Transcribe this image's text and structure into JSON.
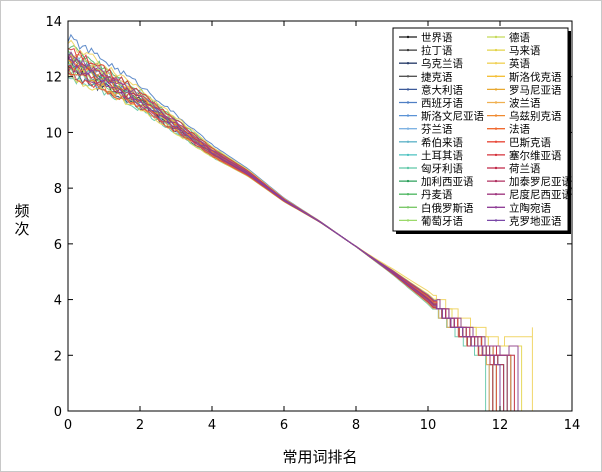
{
  "chart_data": {
    "type": "line",
    "title": "",
    "xlabel": "常用词排名",
    "ylabel": "频次",
    "xlim": [
      0,
      14
    ],
    "ylim": [
      0,
      14
    ],
    "xticks": [
      "0",
      "2",
      "4",
      "6",
      "8",
      "10",
      "12",
      "14"
    ],
    "yticks": [
      "0",
      "2",
      "4",
      "6",
      "8",
      "10",
      "12",
      "14"
    ],
    "grid": false,
    "legend_position": "top-right",
    "shared_curve_x": [
      0.0,
      1.0,
      2.0,
      3.0,
      4.0,
      5.0,
      6.0,
      7.0,
      8.0,
      9.0,
      10.0,
      11.0,
      12.0
    ],
    "shared_curve_y": [
      12.9,
      12.2,
      11.4,
      10.4,
      9.4,
      8.6,
      7.6,
      6.8,
      5.9,
      4.9,
      3.8,
      2.4,
      1.2
    ],
    "series": [
      {
        "name": "世界语",
        "color": "#1a1a1a",
        "y0": 12.3,
        "x_end": 12.1
      },
      {
        "name": "拉丁语",
        "color": "#3a3a3a",
        "y0": 12.6,
        "x_end": 11.8
      },
      {
        "name": "乌克兰语",
        "color": "#2b3f6b",
        "y0": 12.1,
        "x_end": 12.3
      },
      {
        "name": "捷克语",
        "color": "#555555",
        "y0": 12.8,
        "x_end": 11.9
      },
      {
        "name": "意大利语",
        "color": "#3d5a99",
        "y0": 12.4,
        "x_end": 12.0
      },
      {
        "name": "西班牙语",
        "color": "#4f7fc4",
        "y0": 13.4,
        "x_end": 12.2
      },
      {
        "name": "斯洛文尼亚语",
        "color": "#5b93d6",
        "y0": 12.7,
        "x_end": 11.7
      },
      {
        "name": "芬兰语",
        "color": "#7fb3e3",
        "y0": 12.2,
        "x_end": 12.4
      },
      {
        "name": "希伯来语",
        "color": "#63b5c9",
        "y0": 12.9,
        "x_end": 11.9
      },
      {
        "name": "土耳其语",
        "color": "#4dc2c0",
        "y0": 12.5,
        "x_end": 12.1
      },
      {
        "name": "匈牙利语",
        "color": "#5fc8a8",
        "y0": 12.0,
        "x_end": 11.6
      },
      {
        "name": "加利西亚语",
        "color": "#2da05c",
        "y0": 12.6,
        "x_end": 12.2
      },
      {
        "name": "丹麦语",
        "color": "#52b865",
        "y0": 13.1,
        "x_end": 11.8
      },
      {
        "name": "白俄罗斯语",
        "color": "#7cc96a",
        "y0": 12.3,
        "x_end": 12.5
      },
      {
        "name": "葡萄牙语",
        "color": "#9bd96a",
        "y0": 12.8,
        "x_end": 11.9
      },
      {
        "name": "德语",
        "color": "#c5d95a",
        "y0": 12.4,
        "x_end": 12.0
      },
      {
        "name": "马来语",
        "color": "#e3d44a",
        "y0": 12.0,
        "x_end": 12.6
      },
      {
        "name": "英语",
        "color": "#f0d25a",
        "y0": 13.2,
        "x_end": 12.9
      },
      {
        "name": "斯洛伐克语",
        "color": "#f4c03a",
        "y0": 12.7,
        "x_end": 11.8
      },
      {
        "name": "罗马尼亚语",
        "color": "#e8a830",
        "y0": 12.5,
        "x_end": 12.2
      },
      {
        "name": "波兰语",
        "color": "#f0b050",
        "y0": 12.9,
        "x_end": 11.7
      },
      {
        "name": "乌兹别克语",
        "color": "#f08a30",
        "y0": 12.2,
        "x_end": 12.3
      },
      {
        "name": "法语",
        "color": "#f06a30",
        "y0": 12.6,
        "x_end": 12.0
      },
      {
        "name": "巴斯克语",
        "color": "#e84a3a",
        "y0": 12.1,
        "x_end": 11.9
      },
      {
        "name": "塞尔维亚语",
        "color": "#d6303a",
        "y0": 13.0,
        "x_end": 12.4
      },
      {
        "name": "荷兰语",
        "color": "#c02848",
        "y0": 12.4,
        "x_end": 12.1
      },
      {
        "name": "加泰罗尼亚语",
        "color": "#b03060",
        "y0": 12.7,
        "x_end": 11.8
      },
      {
        "name": "尼度尼西亚语",
        "color": "#a03880",
        "y0": 12.3,
        "x_end": 12.2
      },
      {
        "name": "立陶宛语",
        "color": "#904098",
        "y0": 12.8,
        "x_end": 12.5
      },
      {
        "name": "克罗地亚语",
        "color": "#7a48a8",
        "y0": 12.5,
        "x_end": 12.0
      }
    ]
  }
}
